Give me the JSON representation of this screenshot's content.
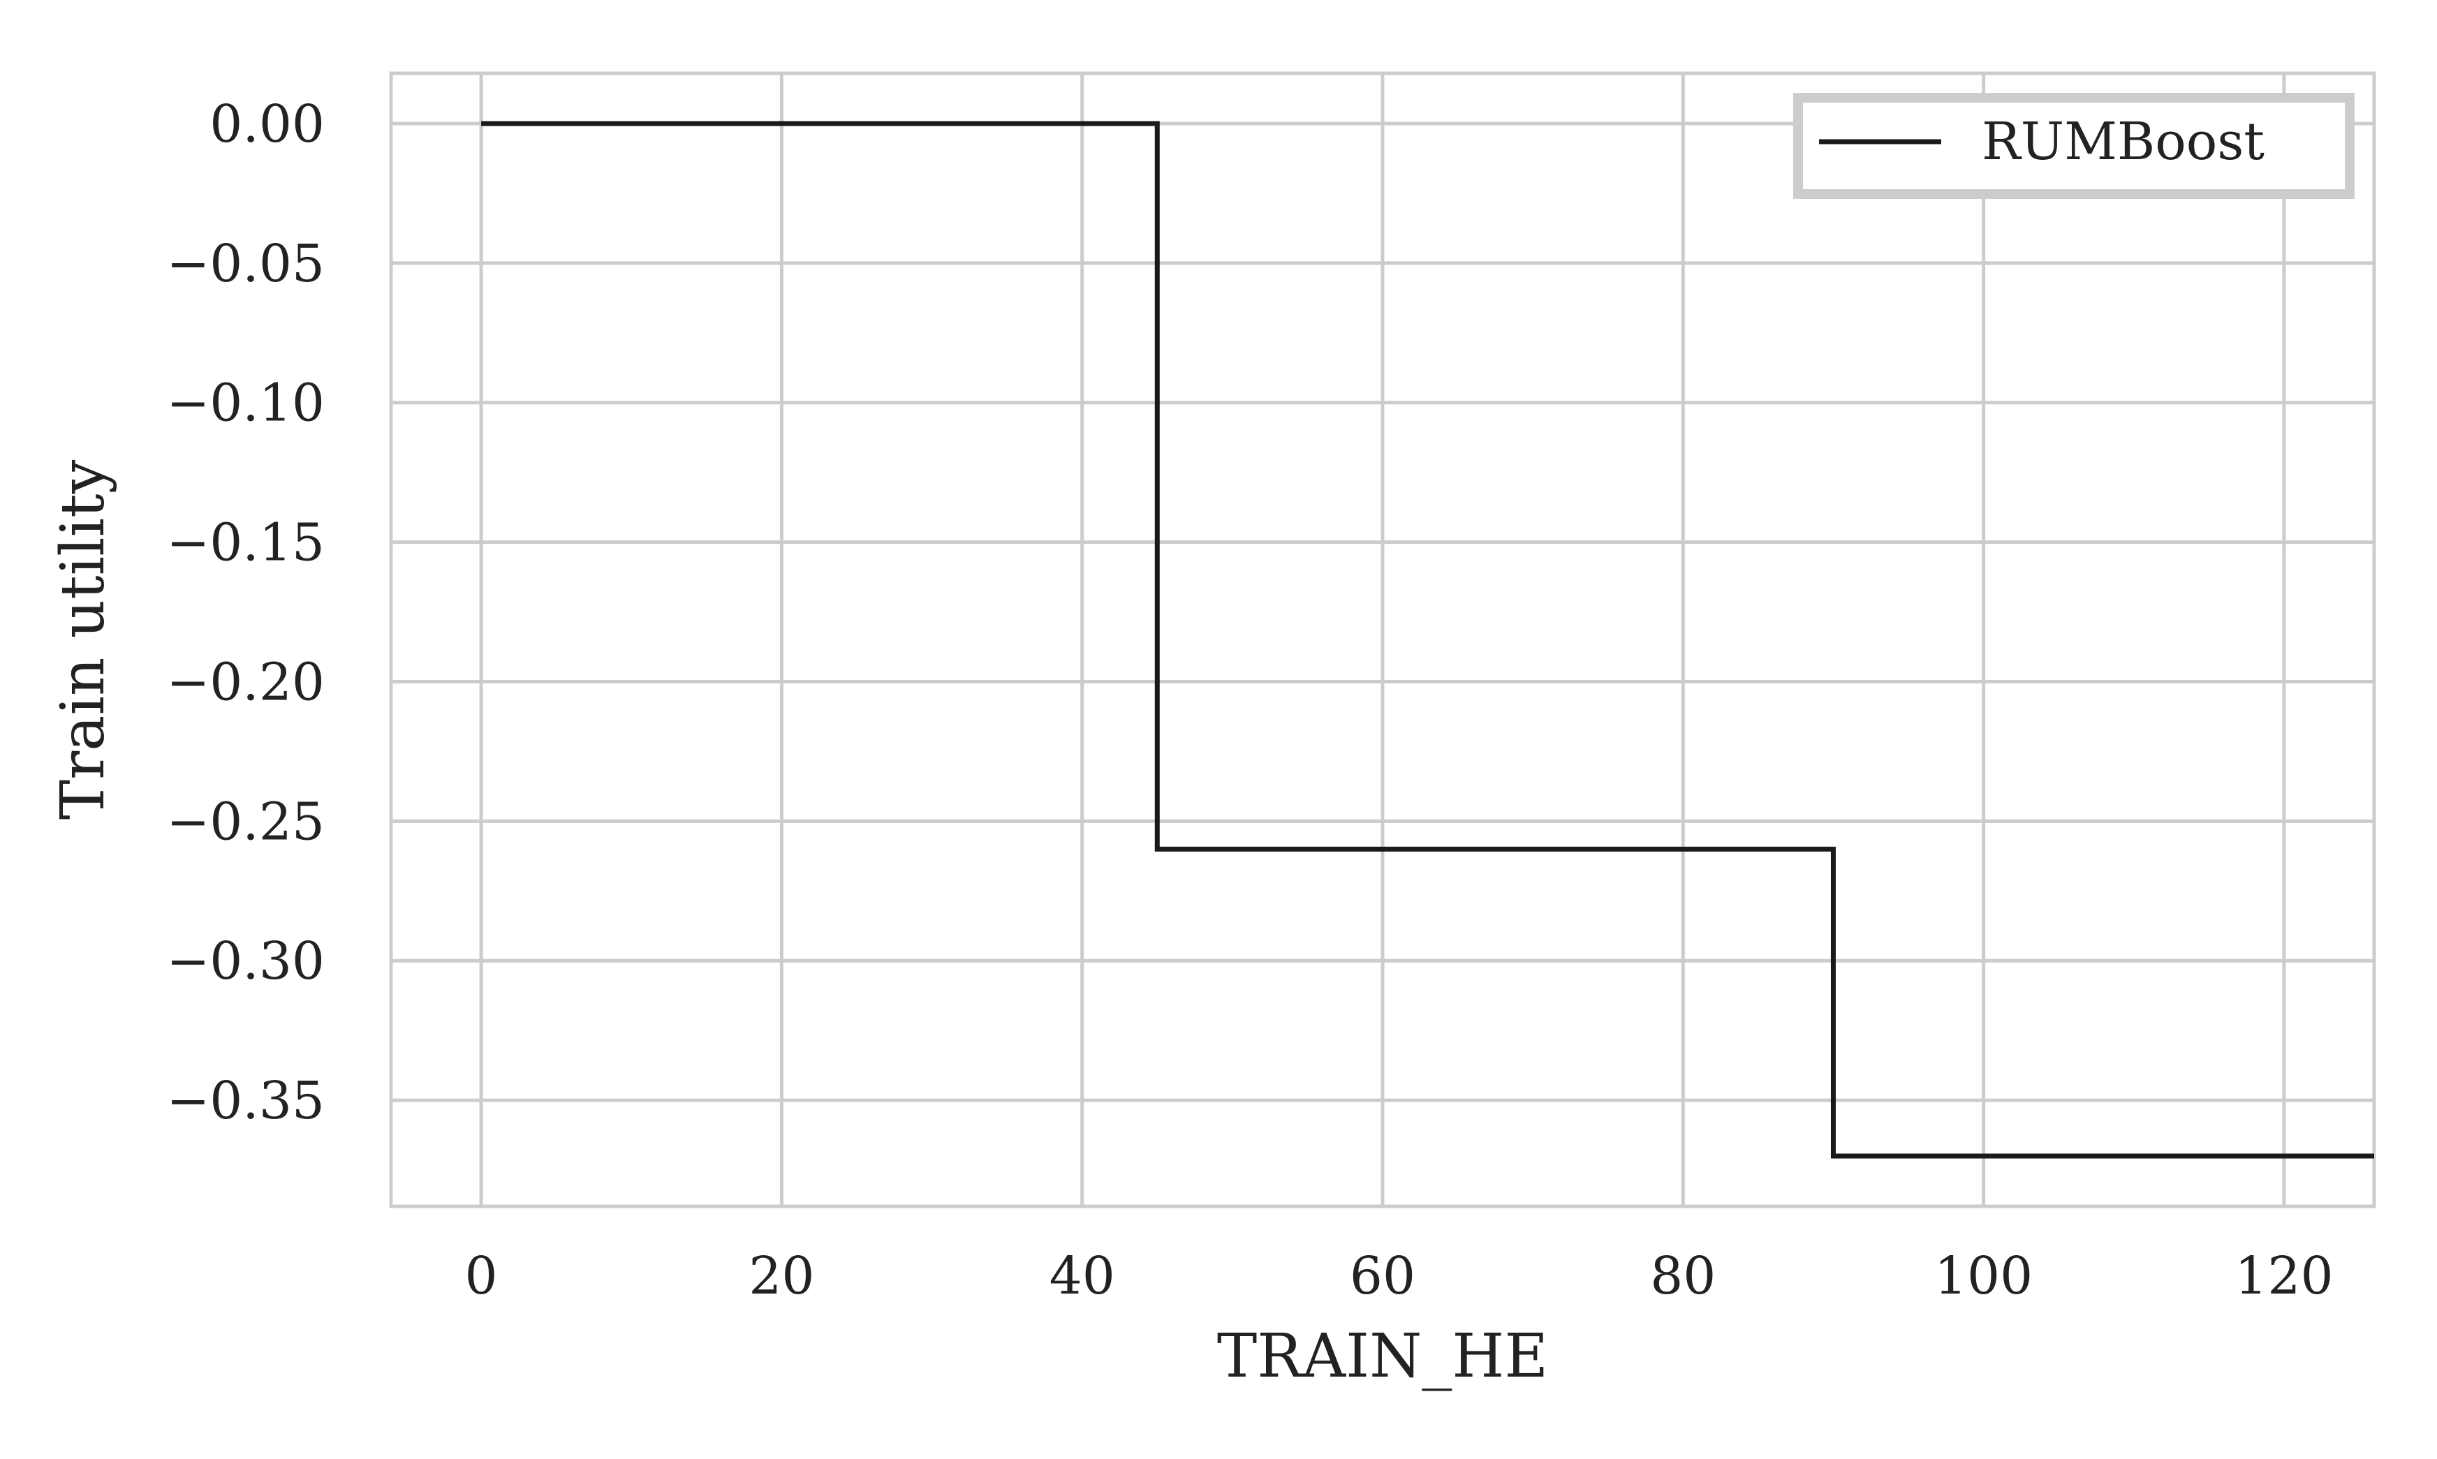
{
  "chart_data": {
    "type": "line",
    "drawstyle": "steps-post",
    "title": "",
    "xlabel": "TRAIN_HE",
    "ylabel": "Train utility",
    "xlim": [
      -6,
      126
    ],
    "ylim": [
      -0.388,
      0.018
    ],
    "xticks": [
      0,
      20,
      40,
      60,
      80,
      100,
      120
    ],
    "xtick_labels": [
      "0",
      "20",
      "40",
      "60",
      "80",
      "100",
      "120"
    ],
    "yticks": [
      0.0,
      -0.05,
      -0.1,
      -0.15,
      -0.2,
      -0.25,
      -0.3,
      -0.35
    ],
    "ytick_labels": [
      "0.00",
      "−0.05",
      "−0.10",
      "−0.15",
      "−0.20",
      "−0.25",
      "−0.30",
      "−0.35"
    ],
    "grid": true,
    "legend": {
      "position": "top-right",
      "entries": [
        "RUMBoost"
      ]
    },
    "series": [
      {
        "name": "RUMBoost",
        "color": "#1a1a1a",
        "x": [
          0,
          45,
          90,
          126
        ],
        "y": [
          0.0,
          -0.26,
          -0.37,
          -0.37
        ]
      }
    ]
  }
}
